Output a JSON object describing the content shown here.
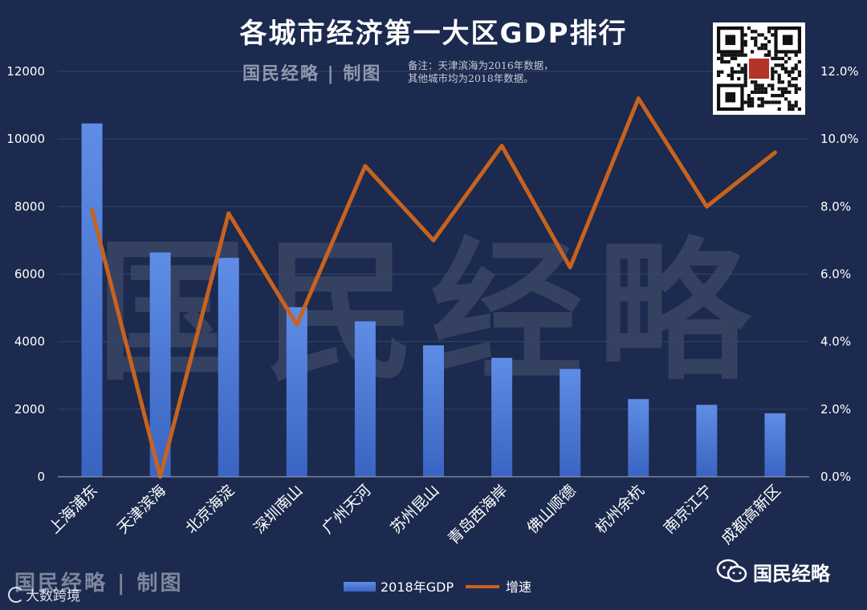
{
  "title": "各城市经济第一大区GDP排行",
  "brand_tag": "国民经略 | 制图",
  "note": [
    "备注：天津滨海为2016年数据，",
    "其他城市均为2018年数据。"
  ],
  "watermark": "国民经略",
  "footer": {
    "brand": "国民经略 | 制图",
    "source": "大数跨境",
    "wechat_account": "国民经略"
  },
  "colors": {
    "background": "#1b2a4e",
    "bar": "#4a78d4",
    "line": "#c8621e",
    "text": "#ffffff"
  },
  "chart_data": {
    "type": "bar",
    "categories": [
      "上海浦东",
      "天津滨海",
      "北京海淀",
      "深圳南山",
      "广州天河",
      "苏州昆山",
      "青岛西海岸",
      "佛山顺德",
      "杭州余杭",
      "南京江宁",
      "成都高新区"
    ],
    "series": [
      {
        "name": "2018年GDP",
        "type": "bar",
        "axis": "left",
        "values": [
          10460,
          6640,
          6480,
          5020,
          4600,
          3890,
          3520,
          3190,
          2300,
          2130,
          1880
        ]
      },
      {
        "name": "增速",
        "type": "line",
        "axis": "right",
        "values": [
          7.9,
          0.0,
          7.8,
          4.5,
          9.2,
          7.0,
          9.8,
          6.2,
          11.2,
          8.0,
          9.6
        ]
      }
    ],
    "y_left": {
      "ylim": [
        0,
        12000
      ],
      "ticks": [
        "0",
        "2000",
        "4000",
        "6000",
        "8000",
        "10000",
        "12000"
      ]
    },
    "y_right": {
      "ylim": [
        0,
        12
      ],
      "ticks": [
        "0.0%",
        "2.0%",
        "4.0%",
        "6.0%",
        "8.0%",
        "10.0%",
        "12.0%"
      ]
    },
    "grid": true,
    "legend": {
      "position": "bottom",
      "entries": [
        "2018年GDP",
        "增速"
      ]
    }
  }
}
